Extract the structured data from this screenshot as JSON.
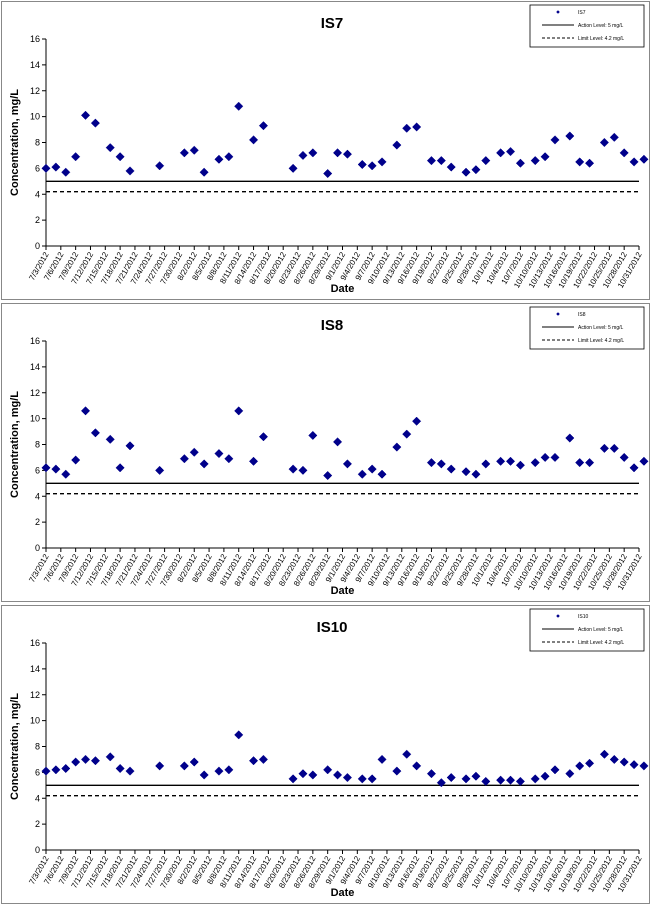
{
  "chart_data": [
    {
      "type": "scatter",
      "title": "IS7",
      "xlabel": "Date",
      "ylabel": "Concentration, mg/L",
      "ylim": [
        0,
        16
      ],
      "yticks": [
        "0",
        "2",
        "4",
        "6",
        "8",
        "10",
        "12",
        "14",
        "16"
      ],
      "xticks": [
        "7/3/2012",
        "7/6/2012",
        "7/9/2012",
        "7/12/2012",
        "7/15/2012",
        "7/18/2012",
        "7/21/2012",
        "7/24/2012",
        "7/27/2012",
        "7/30/2012",
        "8/2/2012",
        "8/5/2012",
        "8/8/2012",
        "8/11/2012",
        "8/14/2012",
        "8/17/2012",
        "8/20/2012",
        "8/23/2012",
        "8/26/2012",
        "8/29/2012",
        "9/1/2012",
        "9/4/2012",
        "9/7/2012",
        "9/10/2012",
        "9/13/2012",
        "9/16/2012",
        "9/19/2012",
        "9/22/2012",
        "9/25/2012",
        "9/28/2012",
        "10/1/2012",
        "10/4/2012",
        "10/7/2012",
        "10/10/2012",
        "10/13/2012",
        "10/16/2012",
        "10/19/2012",
        "10/22/2012",
        "10/25/2012",
        "10/28/2012",
        "10/31/2012"
      ],
      "x_start": "7/3/2012",
      "x_end": "10/31/2012",
      "grid": false,
      "legend_position": "top-right",
      "legend": [
        "IS7",
        "Action Level: 5 mg/L",
        "Limit Level: 4.2 mg/L"
      ],
      "reference_lines": [
        {
          "name": "Action Level: 5 mg/L",
          "value": 5,
          "style": "solid"
        },
        {
          "name": "Limit Level: 4.2 mg/L",
          "value": 4.2,
          "style": "dashed"
        }
      ],
      "series": [
        {
          "name": "IS7",
          "color": "#00008B",
          "marker": "diamond",
          "x": [
            "7/3/2012",
            "7/5/2012",
            "7/7/2012",
            "7/9/2012",
            "7/11/2012",
            "7/13/2012",
            "7/16/2012",
            "7/18/2012",
            "7/20/2012",
            "7/26/2012",
            "7/31/2012",
            "8/2/2012",
            "8/4/2012",
            "8/7/2012",
            "8/9/2012",
            "8/11/2012",
            "8/14/2012",
            "8/16/2012",
            "8/22/2012",
            "8/24/2012",
            "8/26/2012",
            "8/29/2012",
            "8/31/2012",
            "9/2/2012",
            "9/5/2012",
            "9/7/2012",
            "9/9/2012",
            "9/12/2012",
            "9/14/2012",
            "9/16/2012",
            "9/19/2012",
            "9/21/2012",
            "9/23/2012",
            "9/26/2012",
            "9/28/2012",
            "9/30/2012",
            "10/3/2012",
            "10/5/2012",
            "10/7/2012",
            "10/10/2012",
            "10/12/2012",
            "10/14/2012",
            "10/17/2012",
            "10/19/2012",
            "10/21/2012",
            "10/24/2012",
            "10/26/2012",
            "10/28/2012",
            "10/30/2012",
            "11/1/2012"
          ],
          "y": [
            6.0,
            6.1,
            5.7,
            6.9,
            10.1,
            9.5,
            7.6,
            6.9,
            5.8,
            6.2,
            7.2,
            7.4,
            5.7,
            6.7,
            6.9,
            10.8,
            8.2,
            9.3,
            6.0,
            7.0,
            7.2,
            5.6,
            7.2,
            7.1,
            6.3,
            6.2,
            6.5,
            7.8,
            9.1,
            9.2,
            6.6,
            6.6,
            6.1,
            5.7,
            5.9,
            6.6,
            7.2,
            7.3,
            6.4,
            6.6,
            6.9,
            8.2,
            8.5,
            6.5,
            6.4,
            8.0,
            8.4,
            7.2,
            6.5,
            6.7
          ]
        }
      ]
    },
    {
      "type": "scatter",
      "title": "IS8",
      "xlabel": "Date",
      "ylabel": "Concentration, mg/L",
      "ylim": [
        0,
        16
      ],
      "yticks": [
        "0",
        "2",
        "4",
        "6",
        "8",
        "10",
        "12",
        "14",
        "16"
      ],
      "xticks": [
        "7/3/2012",
        "7/6/2012",
        "7/9/2012",
        "7/12/2012",
        "7/15/2012",
        "7/18/2012",
        "7/21/2012",
        "7/24/2012",
        "7/27/2012",
        "7/30/2012",
        "8/2/2012",
        "8/5/2012",
        "8/8/2012",
        "8/11/2012",
        "8/14/2012",
        "8/17/2012",
        "8/20/2012",
        "8/23/2012",
        "8/26/2012",
        "8/29/2012",
        "9/1/2012",
        "9/4/2012",
        "9/7/2012",
        "9/10/2012",
        "9/13/2012",
        "9/16/2012",
        "9/19/2012",
        "9/22/2012",
        "9/25/2012",
        "9/28/2012",
        "10/1/2012",
        "10/4/2012",
        "10/7/2012",
        "10/10/2012",
        "10/13/2012",
        "10/16/2012",
        "10/19/2012",
        "10/22/2012",
        "10/25/2012",
        "10/28/2012",
        "10/31/2012"
      ],
      "x_start": "7/3/2012",
      "x_end": "10/31/2012",
      "grid": false,
      "legend_position": "top-right",
      "legend": [
        "IS8",
        "Action Level: 5 mg/L",
        "Limit Level: 4.2 mg/L"
      ],
      "reference_lines": [
        {
          "name": "Action Level: 5 mg/L",
          "value": 5,
          "style": "solid"
        },
        {
          "name": "Limit Level: 4.2 mg/L",
          "value": 4.2,
          "style": "dashed"
        }
      ],
      "series": [
        {
          "name": "IS8",
          "color": "#00008B",
          "marker": "diamond",
          "x": [
            "7/3/2012",
            "7/5/2012",
            "7/7/2012",
            "7/9/2012",
            "7/11/2012",
            "7/13/2012",
            "7/16/2012",
            "7/18/2012",
            "7/20/2012",
            "7/26/2012",
            "7/31/2012",
            "8/2/2012",
            "8/4/2012",
            "8/7/2012",
            "8/9/2012",
            "8/11/2012",
            "8/14/2012",
            "8/16/2012",
            "8/22/2012",
            "8/24/2012",
            "8/26/2012",
            "8/29/2012",
            "8/31/2012",
            "9/2/2012",
            "9/5/2012",
            "9/7/2012",
            "9/9/2012",
            "9/12/2012",
            "9/14/2012",
            "9/16/2012",
            "9/19/2012",
            "9/21/2012",
            "9/23/2012",
            "9/26/2012",
            "9/28/2012",
            "9/30/2012",
            "10/3/2012",
            "10/5/2012",
            "10/7/2012",
            "10/10/2012",
            "10/12/2012",
            "10/14/2012",
            "10/17/2012",
            "10/19/2012",
            "10/21/2012",
            "10/24/2012",
            "10/26/2012",
            "10/28/2012",
            "10/30/2012",
            "11/1/2012"
          ],
          "y": [
            6.2,
            6.1,
            5.7,
            6.8,
            10.6,
            8.9,
            8.4,
            6.2,
            7.9,
            6.0,
            6.9,
            7.4,
            6.5,
            7.3,
            6.9,
            10.6,
            6.7,
            8.6,
            6.1,
            6.0,
            8.7,
            5.6,
            8.2,
            6.5,
            5.7,
            6.1,
            5.7,
            7.8,
            8.8,
            9.8,
            6.6,
            6.5,
            6.1,
            5.9,
            5.7,
            6.5,
            6.7,
            6.7,
            6.4,
            6.6,
            7.0,
            7.0,
            8.5,
            6.6,
            6.6,
            7.7,
            7.7,
            7.0,
            6.2,
            6.7
          ]
        }
      ]
    },
    {
      "type": "scatter",
      "title": "IS10",
      "xlabel": "Date",
      "ylabel": "Concentration, mg/L",
      "ylim": [
        0,
        16
      ],
      "yticks": [
        "0",
        "2",
        "4",
        "6",
        "8",
        "10",
        "12",
        "14",
        "16"
      ],
      "xticks": [
        "7/3/2012",
        "7/6/2012",
        "7/9/2012",
        "7/12/2012",
        "7/15/2012",
        "7/18/2012",
        "7/21/2012",
        "7/24/2012",
        "7/27/2012",
        "7/30/2012",
        "8/2/2012",
        "8/5/2012",
        "8/8/2012",
        "8/11/2012",
        "8/14/2012",
        "8/17/2012",
        "8/20/2012",
        "8/23/2012",
        "8/26/2012",
        "8/29/2012",
        "9/1/2012",
        "9/4/2012",
        "9/7/2012",
        "9/10/2012",
        "9/13/2012",
        "9/16/2012",
        "9/19/2012",
        "9/22/2012",
        "9/25/2012",
        "9/28/2012",
        "10/1/2012",
        "10/4/2012",
        "10/7/2012",
        "10/10/2012",
        "10/13/2012",
        "10/16/2012",
        "10/19/2012",
        "10/22/2012",
        "10/25/2012",
        "10/28/2012",
        "10/31/2012"
      ],
      "x_start": "7/3/2012",
      "x_end": "10/31/2012",
      "grid": false,
      "legend_position": "top-right",
      "legend": [
        "IS10",
        "Action Level: 5 mg/L",
        "Limit Level: 4.2 mg/L"
      ],
      "reference_lines": [
        {
          "name": "Action Level: 5 mg/L",
          "value": 5,
          "style": "solid"
        },
        {
          "name": "Limit Level: 4.2 mg/L",
          "value": 4.2,
          "style": "dashed"
        }
      ],
      "series": [
        {
          "name": "IS10",
          "color": "#00008B",
          "marker": "diamond",
          "x": [
            "7/3/2012",
            "7/5/2012",
            "7/7/2012",
            "7/9/2012",
            "7/11/2012",
            "7/13/2012",
            "7/16/2012",
            "7/18/2012",
            "7/20/2012",
            "7/26/2012",
            "7/31/2012",
            "8/2/2012",
            "8/4/2012",
            "8/7/2012",
            "8/9/2012",
            "8/11/2012",
            "8/14/2012",
            "8/16/2012",
            "8/22/2012",
            "8/24/2012",
            "8/26/2012",
            "8/29/2012",
            "8/31/2012",
            "9/2/2012",
            "9/5/2012",
            "9/7/2012",
            "9/9/2012",
            "9/12/2012",
            "9/14/2012",
            "9/16/2012",
            "9/19/2012",
            "9/21/2012",
            "9/23/2012",
            "9/26/2012",
            "9/28/2012",
            "9/30/2012",
            "10/3/2012",
            "10/5/2012",
            "10/7/2012",
            "10/10/2012",
            "10/12/2012",
            "10/14/2012",
            "10/17/2012",
            "10/19/2012",
            "10/21/2012",
            "10/24/2012",
            "10/26/2012",
            "10/28/2012",
            "10/30/2012",
            "11/1/2012"
          ],
          "y": [
            6.1,
            6.2,
            6.3,
            6.8,
            7.0,
            6.9,
            7.2,
            6.3,
            6.1,
            6.5,
            6.5,
            6.8,
            5.8,
            6.1,
            6.2,
            8.9,
            6.9,
            7.0,
            5.5,
            5.9,
            5.8,
            6.2,
            5.8,
            5.6,
            5.5,
            5.5,
            7.0,
            6.1,
            7.4,
            6.5,
            5.9,
            5.2,
            5.6,
            5.5,
            5.7,
            5.3,
            5.4,
            5.4,
            5.3,
            5.5,
            5.7,
            6.2,
            5.9,
            6.5,
            6.7,
            7.4,
            7.0,
            6.8,
            6.6,
            6.5
          ]
        }
      ]
    }
  ]
}
